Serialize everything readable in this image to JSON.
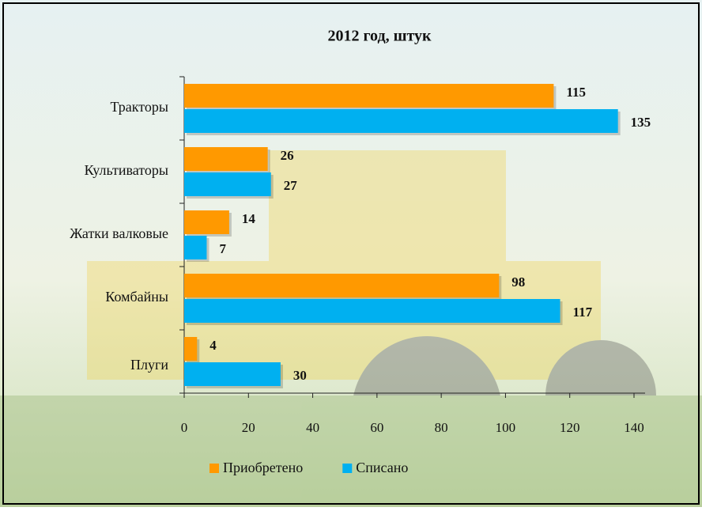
{
  "chart_data": {
    "type": "bar",
    "orientation": "horizontal",
    "title": "2012 год, штук",
    "categories": [
      "Тракторы",
      "Культиваторы",
      "Жатки валковые",
      "Комбайны",
      "Плуги"
    ],
    "series": [
      {
        "name": "Приобретено",
        "color": "#ff9900",
        "values": [
          115,
          26,
          14,
          98,
          4
        ]
      },
      {
        "name": "Списано",
        "color": "#00b0f0",
        "values": [
          135,
          27,
          7,
          117,
          30
        ]
      }
    ],
    "xlim": [
      0,
      140
    ],
    "xticks": [
      0,
      20,
      40,
      60,
      80,
      100,
      120,
      140
    ],
    "legend": "bottom"
  }
}
